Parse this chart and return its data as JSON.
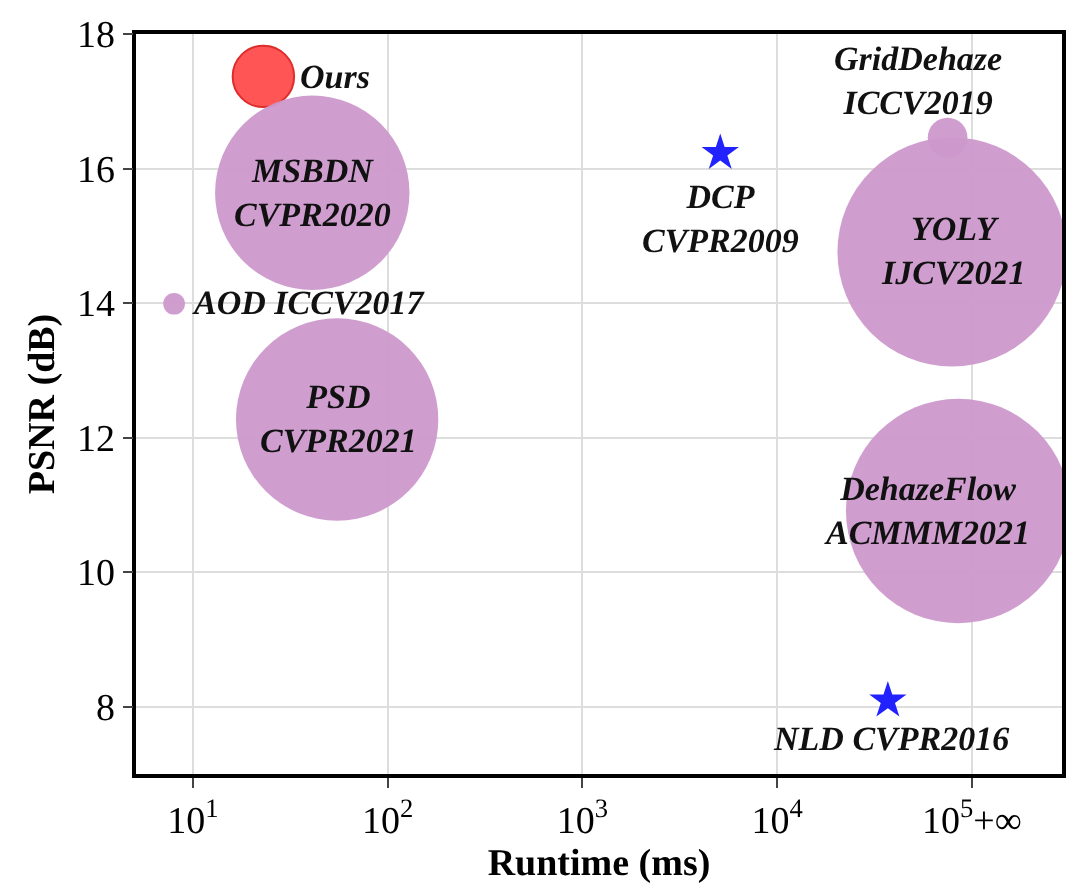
{
  "chart_data": {
    "type": "bubble",
    "xlabel": "Runtime (ms)",
    "ylabel": "PSNR (dB)",
    "log": "x",
    "grid": true,
    "xlim": [
      5.1,
      290000
    ],
    "xticks": [
      {
        "value": 10,
        "label": "10$^{1}$"
      },
      {
        "value": 100,
        "label": "10$^{2}$"
      },
      {
        "value": 1000,
        "label": "10$^{3}$"
      },
      {
        "value": 10000,
        "label": "10$^{4}$"
      },
      {
        "value": 100000,
        "label": "10$^{5}$+∞"
      }
    ],
    "ylim": [
      7.0,
      18
    ],
    "yticks": [
      8,
      10,
      12,
      14,
      16,
      18
    ],
    "series": [
      {
        "name": "Ours",
        "type": "bubble",
        "color": "#ff4c4c",
        "x": [
          23
        ],
        "values": [
          17.37
        ],
        "sizes": [
          0.072
        ]
      },
      {
        "name": "MSBDN\nCVPR2020",
        "type": "bubble",
        "color": "#cc99cc",
        "x": [
          41
        ],
        "values": [
          15.64
        ],
        "sizes": [
          0.72
        ]
      },
      {
        "name": "AOD ICCV2017",
        "type": "bubble",
        "color": "#cc99cc",
        "x": [
          8
        ],
        "values": [
          13.99
        ],
        "sizes": [
          0.009
        ]
      },
      {
        "name": "PSD\nCVPR2021",
        "type": "bubble",
        "color": "#cc99cc",
        "x": [
          55
        ],
        "values": [
          12.27
        ],
        "sizes": [
          0.78
        ]
      },
      {
        "name": "DCP\nCVPR2009",
        "type": "scatter",
        "marker": "star",
        "color": "#2222ff",
        "x": [
          5100
        ],
        "values": [
          16.23
        ]
      },
      {
        "name": "YOLY\nIJCV2021",
        "type": "bubble",
        "color": "#cc99cc",
        "x": [
          79000
        ],
        "values": [
          14.76
        ],
        "sizes": [
          1
        ]
      },
      {
        "name": "GridDehaze\nICCV2019",
        "type": "bubble",
        "color": "#cc99cc",
        "x": [
          75000
        ],
        "values": [
          16.46
        ],
        "sizes": [
          0.03
        ]
      },
      {
        "name": "DehazeFlow\nACMMM2021",
        "type": "bubble",
        "color": "#cc99cc",
        "x": [
          85000
        ],
        "values": [
          10.91
        ],
        "sizes": [
          0.96
        ]
      },
      {
        "name": "NLD CVPR2016",
        "type": "scatter",
        "marker": "star",
        "color": "#2222ff",
        "x": [
          37000
        ],
        "values": [
          8.09
        ]
      }
    ]
  }
}
